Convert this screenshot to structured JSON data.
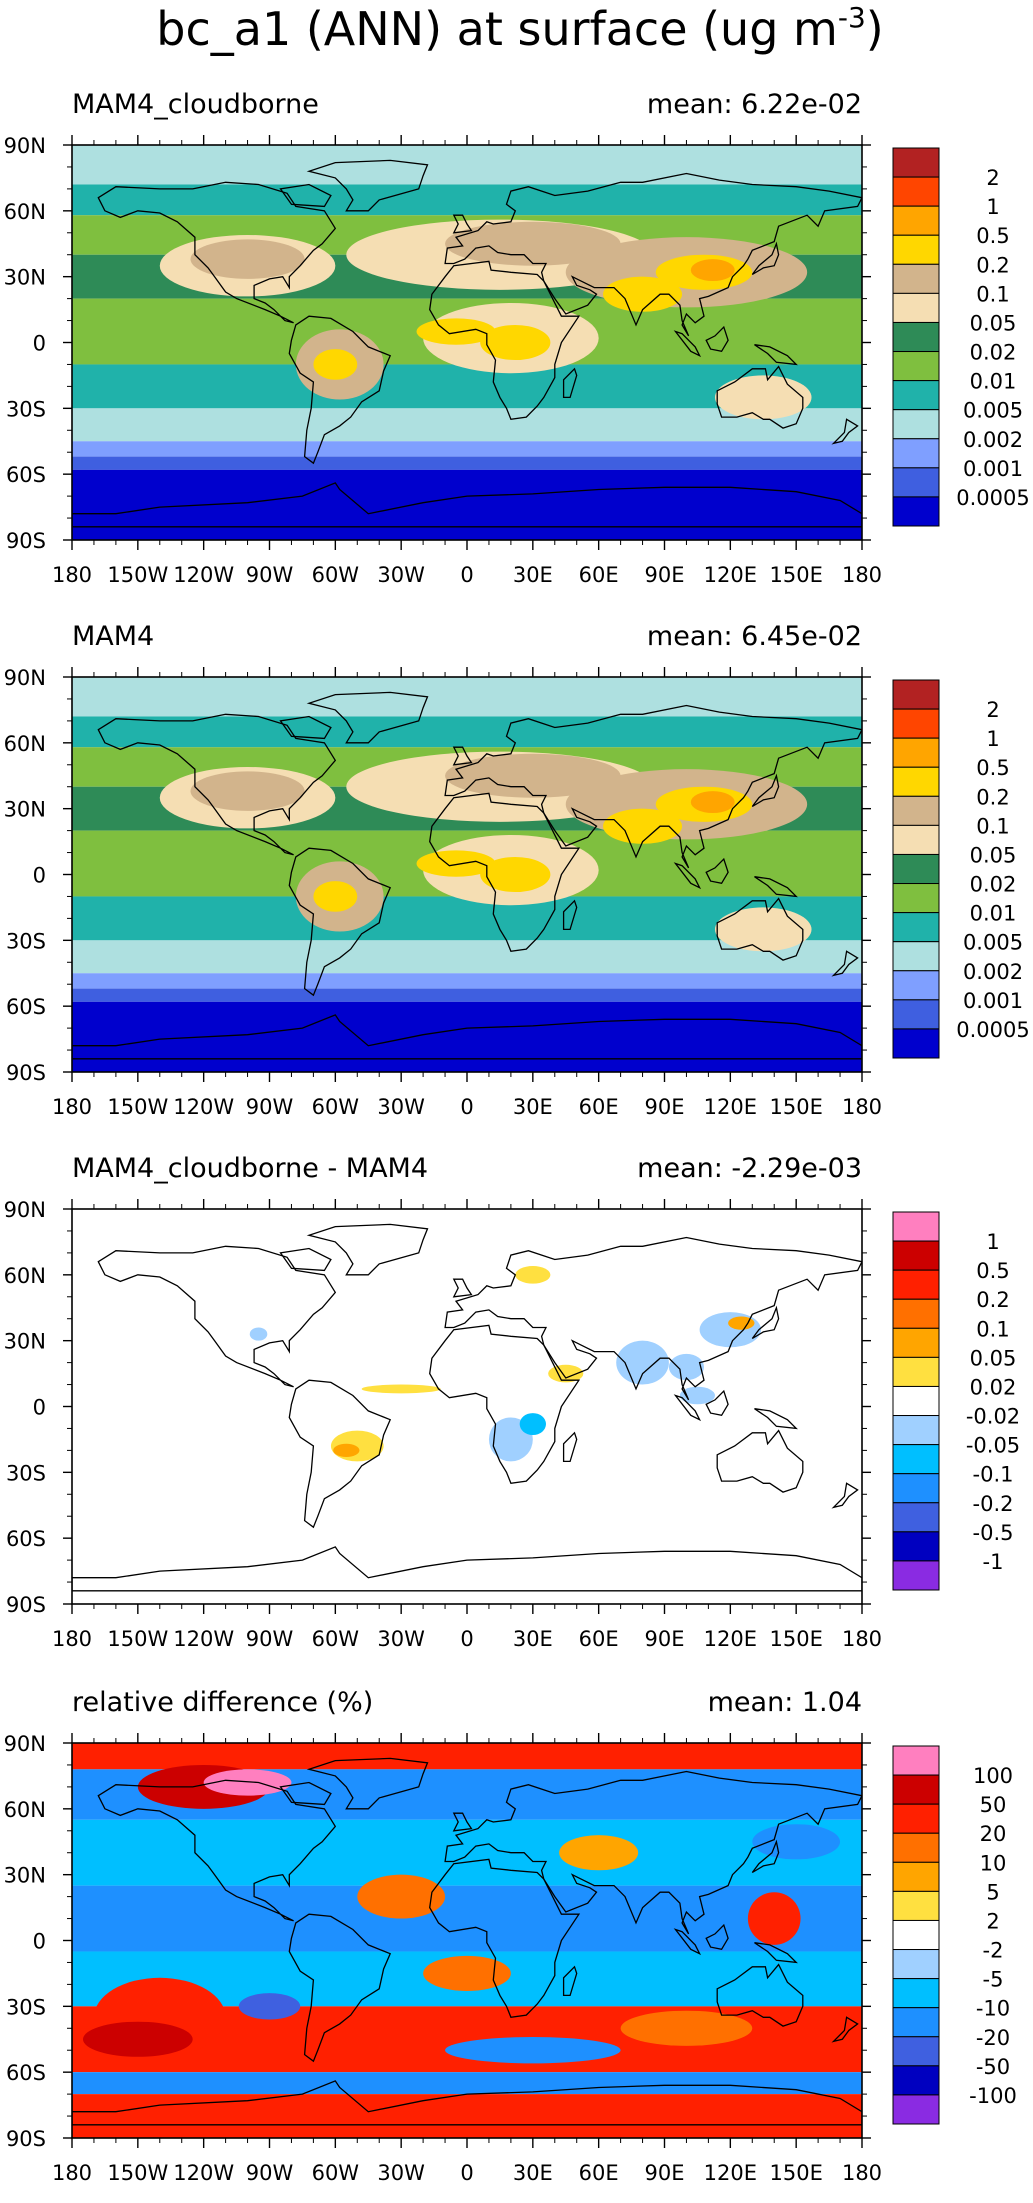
{
  "figure": {
    "title_text": "bc_a1 (ANN) at surface (ug m",
    "title_exponent": "-3",
    "title_close": ")"
  },
  "axes": {
    "lat_labels": [
      "90N",
      "60N",
      "30N",
      "0",
      "30S",
      "60S",
      "90S"
    ],
    "lon_labels": [
      "180",
      "150W",
      "120W",
      "90W",
      "60W",
      "30W",
      "0",
      "30E",
      "60E",
      "90E",
      "120E",
      "150E",
      "180"
    ]
  },
  "panels": [
    {
      "name": "MAM4_cloudborne",
      "mean_text": "mean: 6.22e-02",
      "colorbar": {
        "labels": [
          "2",
          "1",
          "0.5",
          "0.2",
          "0.1",
          "0.05",
          "0.02",
          "0.01",
          "0.005",
          "0.002",
          "0.001",
          "0.0005"
        ],
        "colors": [
          "#b22222",
          "#ff4500",
          "#ffa500",
          "#ffd700",
          "#d2b48c",
          "#f5deb3",
          "#2e8b57",
          "#7fbf3f",
          "#20b2aa",
          "#aee0e0",
          "#7f9fff",
          "#3f5fe0",
          "#0000cd"
        ]
      }
    },
    {
      "name": "MAM4",
      "mean_text": "mean: 6.45e-02",
      "colorbar": {
        "labels": [
          "2",
          "1",
          "0.5",
          "0.2",
          "0.1",
          "0.05",
          "0.02",
          "0.01",
          "0.005",
          "0.002",
          "0.001",
          "0.0005"
        ],
        "colors": [
          "#b22222",
          "#ff4500",
          "#ffa500",
          "#ffd700",
          "#d2b48c",
          "#f5deb3",
          "#2e8b57",
          "#7fbf3f",
          "#20b2aa",
          "#aee0e0",
          "#7f9fff",
          "#3f5fe0",
          "#0000cd"
        ]
      }
    },
    {
      "name": "MAM4_cloudborne - MAM4",
      "mean_text": "mean: -2.29e-03",
      "colorbar": {
        "labels": [
          "1",
          "0.5",
          "0.2",
          "0.1",
          "0.05",
          "0.02",
          "-0.02",
          "-0.05",
          "-0.1",
          "-0.2",
          "-0.5",
          "-1"
        ],
        "colors": [
          "#ff7fbf",
          "#cc0000",
          "#ff2000",
          "#ff7000",
          "#ffa500",
          "#ffe040",
          "#ffffff",
          "#a0d0ff",
          "#00bfff",
          "#1e90ff",
          "#3f60e0",
          "#0000c0",
          "#8a2be2"
        ]
      }
    },
    {
      "name": "relative difference (%)",
      "mean_text": "mean:   1.04",
      "colorbar": {
        "labels": [
          "100",
          "50",
          "20",
          "10",
          "5",
          "2",
          "-2",
          "-5",
          "-10",
          "-20",
          "-50",
          "-100"
        ],
        "colors": [
          "#ff7fbf",
          "#cc0000",
          "#ff2000",
          "#ff7000",
          "#ffa500",
          "#ffe040",
          "#ffffff",
          "#a0d0ff",
          "#00bfff",
          "#1e90ff",
          "#3f60e0",
          "#0000c0",
          "#8a2be2"
        ]
      }
    }
  ]
}
